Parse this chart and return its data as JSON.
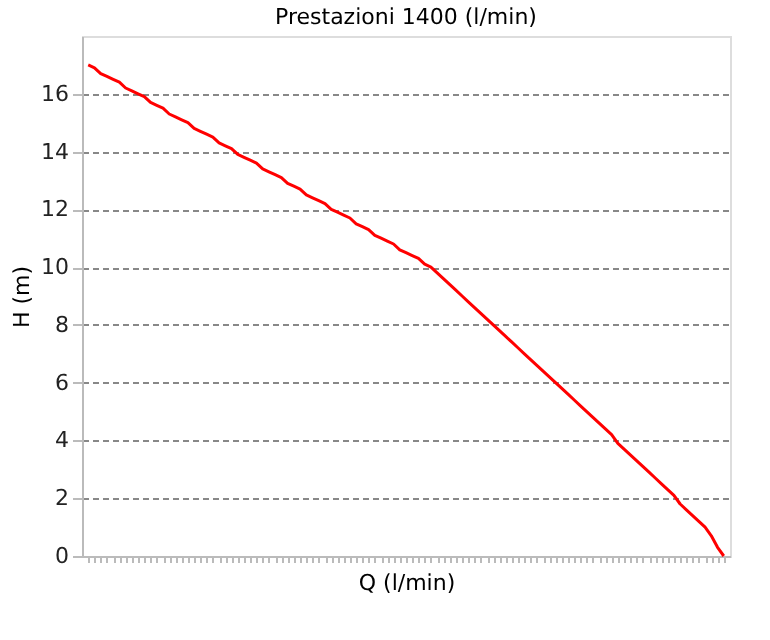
{
  "chart_data": {
    "type": "line",
    "title": "Prestazioni 1400 (l/min)",
    "xlabel": "Q (l/min)",
    "ylabel": "H (m)",
    "categories": [
      null,
      null,
      null,
      null,
      null,
      null,
      null,
      null,
      null,
      null,
      null,
      null,
      null,
      null,
      null,
      null,
      null,
      null,
      null,
      null,
      null,
      null,
      null,
      null,
      null,
      null,
      null,
      null,
      null,
      null,
      null,
      null,
      null,
      null,
      null,
      null,
      null,
      null,
      null,
      null,
      null,
      null,
      null,
      null,
      null,
      null,
      null,
      null,
      null,
      null,
      null,
      null,
      null,
      null,
      null,
      null,
      null,
      null,
      null,
      null,
      null,
      null,
      null,
      null,
      null,
      null,
      null,
      null,
      null,
      null,
      null,
      null,
      null,
      null,
      null,
      null,
      null,
      null,
      null,
      null,
      null,
      null,
      null,
      null,
      null,
      null,
      null,
      null,
      null,
      null,
      null,
      null,
      null,
      null,
      null,
      null,
      null,
      null,
      null,
      null,
      null,
      null,
      null
    ],
    "series": [
      {
        "color": "#ff0000",
        "values": [
          17.0,
          16.9,
          16.7,
          16.6,
          16.5,
          16.4,
          16.2,
          16.1,
          16.0,
          15.9,
          15.7,
          15.6,
          15.5,
          15.3,
          15.2,
          15.1,
          15.0,
          14.8,
          14.7,
          14.6,
          14.5,
          14.3,
          14.2,
          14.1,
          13.9,
          13.8,
          13.7,
          13.6,
          13.4,
          13.3,
          13.2,
          13.1,
          12.9,
          12.8,
          12.7,
          12.5,
          12.4,
          12.3,
          12.2,
          12.0,
          11.9,
          11.8,
          11.7,
          11.5,
          11.4,
          11.3,
          11.1,
          11.0,
          10.9,
          10.8,
          10.6,
          10.5,
          10.4,
          10.3,
          10.1,
          10.0,
          9.8,
          9.6,
          9.4,
          9.2,
          9.0,
          8.8,
          8.6,
          8.4,
          8.2,
          8.0,
          7.8,
          7.6,
          7.4,
          7.2,
          7.0,
          6.8,
          6.6,
          6.4,
          6.2,
          6.0,
          5.8,
          5.6,
          5.4,
          5.2,
          5.0,
          4.8,
          4.6,
          4.4,
          4.2,
          3.9,
          3.7,
          3.5,
          3.3,
          3.1,
          2.9,
          2.7,
          2.5,
          2.3,
          2.1,
          1.8,
          1.6,
          1.4,
          1.2,
          1.0,
          0.7,
          0.3,
          0.0
        ]
      }
    ],
    "ylim": [
      0,
      18
    ],
    "yticks": [
      0,
      2,
      4,
      6,
      8,
      10,
      12,
      14,
      16
    ],
    "grid": "y",
    "legend": false,
    "tick_labels": "y",
    "marker": "none",
    "line_style": "solid"
  }
}
